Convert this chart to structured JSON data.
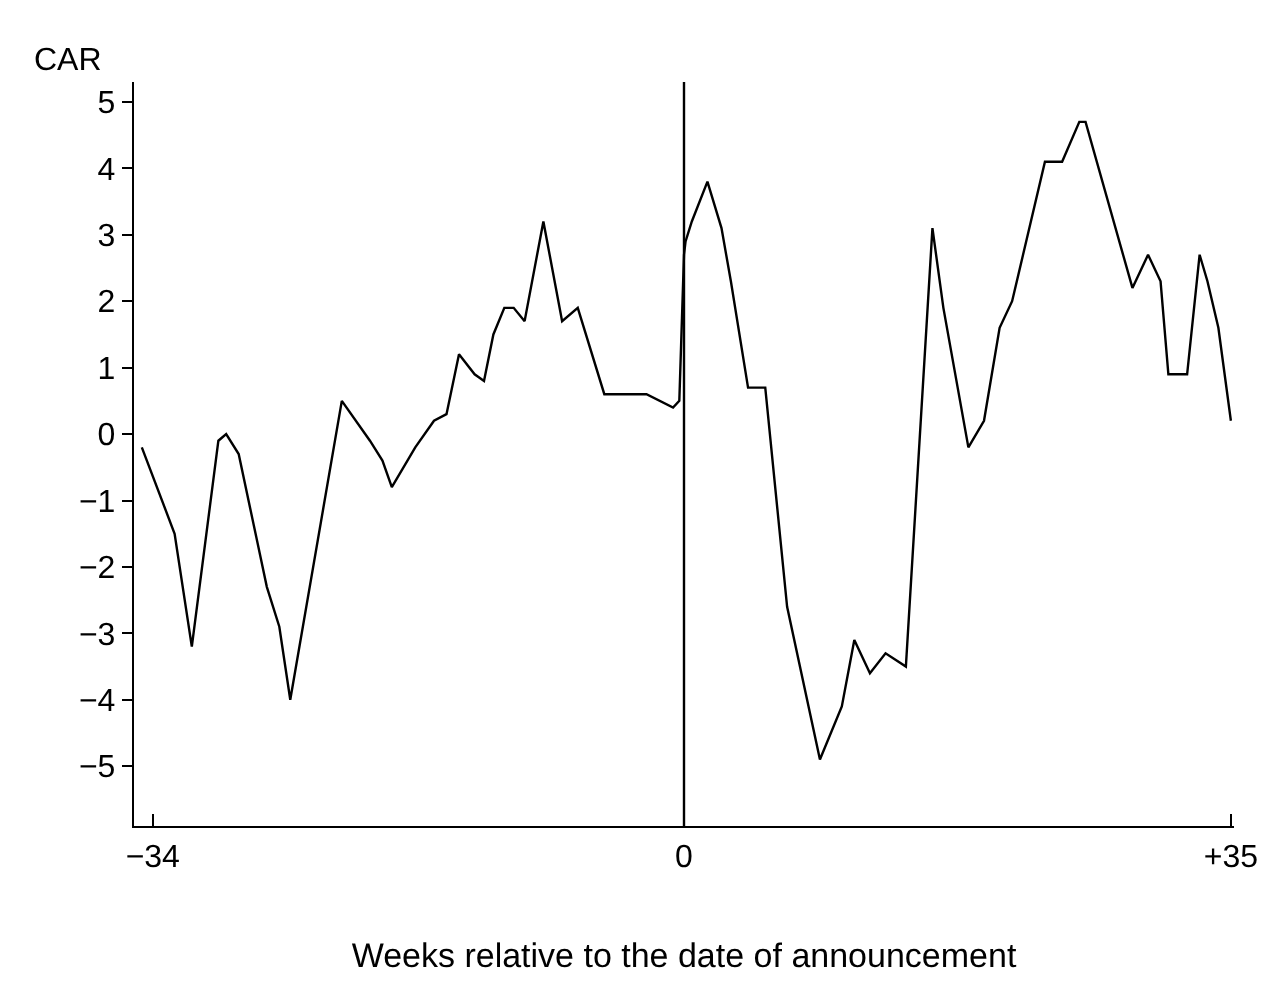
{
  "chart_data": {
    "type": "line",
    "xlabel": "Weeks relative to the date of announcement",
    "ylabel": "CAR",
    "x": [
      -34.7,
      -32.6,
      -31.5,
      -29.8,
      -29.3,
      -28.5,
      -26.7,
      -25.9,
      -25.2,
      -21.9,
      -20.1,
      -19.3,
      -18.7,
      -17.2,
      -16.0,
      -15.2,
      -14.4,
      -13.4,
      -12.8,
      -12.2,
      -11.5,
      -10.9,
      -10.2,
      -9.0,
      -7.8,
      -6.8,
      -5.1,
      -2.4,
      -0.7,
      -0.3,
      0.0,
      0.1,
      0.5,
      1.5,
      2.4,
      3.0,
      4.1,
      5.2,
      6.6,
      8.7,
      10.1,
      10.9,
      11.9,
      12.9,
      14.2,
      15.9,
      16.6,
      18.2,
      19.2,
      20.2,
      21.0,
      23.1,
      24.2,
      25.3,
      25.7,
      28.7,
      29.7,
      30.5,
      31.0,
      32.2,
      33.0,
      33.5,
      34.2,
      35.0
    ],
    "series": [
      {
        "color": "#000000",
        "values": [
          -0.2,
          -1.5,
          -3.2,
          -0.1,
          0.0,
          -0.3,
          -2.3,
          -2.9,
          -4.0,
          0.5,
          -0.1,
          -0.4,
          -0.8,
          -0.2,
          0.2,
          0.3,
          1.2,
          0.9,
          0.8,
          1.5,
          1.9,
          1.9,
          1.7,
          3.2,
          1.7,
          1.9,
          0.6,
          0.6,
          0.4,
          0.5,
          2.7,
          2.9,
          3.2,
          3.8,
          3.1,
          2.3,
          0.7,
          0.7,
          -2.6,
          -4.9,
          -4.1,
          -3.1,
          -3.6,
          -3.3,
          -3.5,
          3.1,
          1.9,
          -0.2,
          0.2,
          1.6,
          2.0,
          4.1,
          4.1,
          4.7,
          4.7,
          2.2,
          2.7,
          2.3,
          0.9,
          0.9,
          2.7,
          2.3,
          1.6,
          0.2
        ]
      }
    ],
    "xlim": [
      -35.2,
      35.2
    ],
    "ylim": [
      -5.9,
      5.3
    ],
    "xticks": [
      {
        "value": -34,
        "label": "−34"
      },
      0,
      {
        "value": 35,
        "label": "+35"
      }
    ],
    "yticks": [
      {
        "value": -5,
        "label": "−5"
      },
      {
        "value": -4,
        "label": "−4"
      },
      {
        "value": -3,
        "label": "−3"
      },
      {
        "value": -2,
        "label": "−2"
      },
      {
        "value": -1,
        "label": "−1"
      },
      0,
      1,
      2,
      3,
      4,
      5
    ],
    "ref_lines": [
      {
        "axis": "x",
        "value": 0,
        "color": "#000000"
      }
    ],
    "marker": "none",
    "line_style": "solid"
  }
}
